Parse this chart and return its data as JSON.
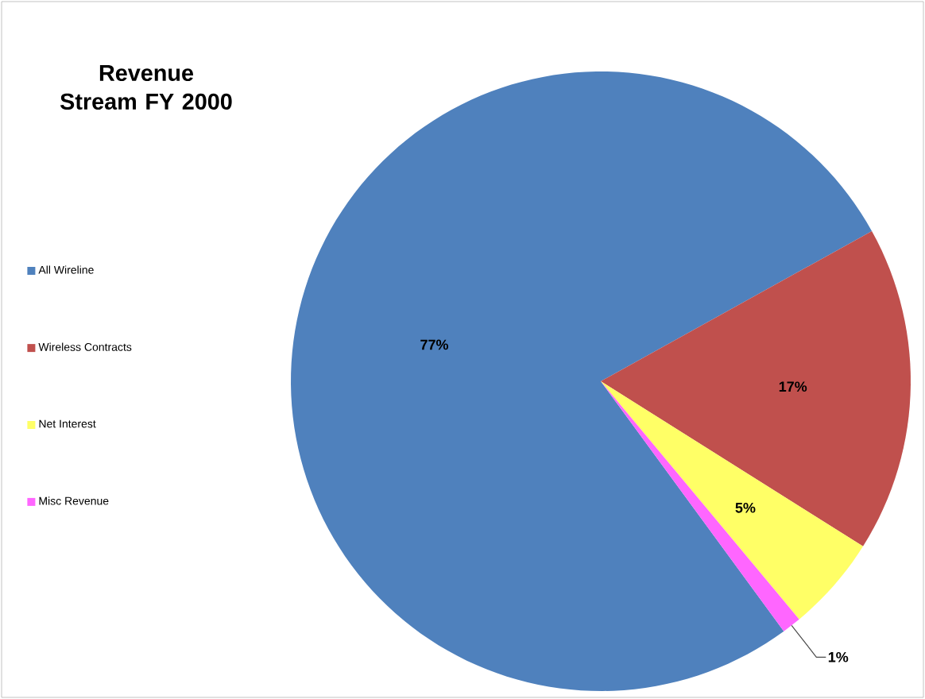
{
  "chart_data": {
    "type": "pie",
    "title": "Revenue Stream FY 2000",
    "categories": [
      "All Wireline",
      "Wireless Contracts",
      "Net Interest",
      "Misc Revenue"
    ],
    "values": [
      77,
      17,
      5,
      1
    ],
    "value_labels": [
      "77%",
      "17%",
      "5%",
      "1%"
    ],
    "colors": [
      "#4f81bd",
      "#c0504d",
      "#ffff66",
      "#ff66ff"
    ],
    "legend": "left"
  }
}
